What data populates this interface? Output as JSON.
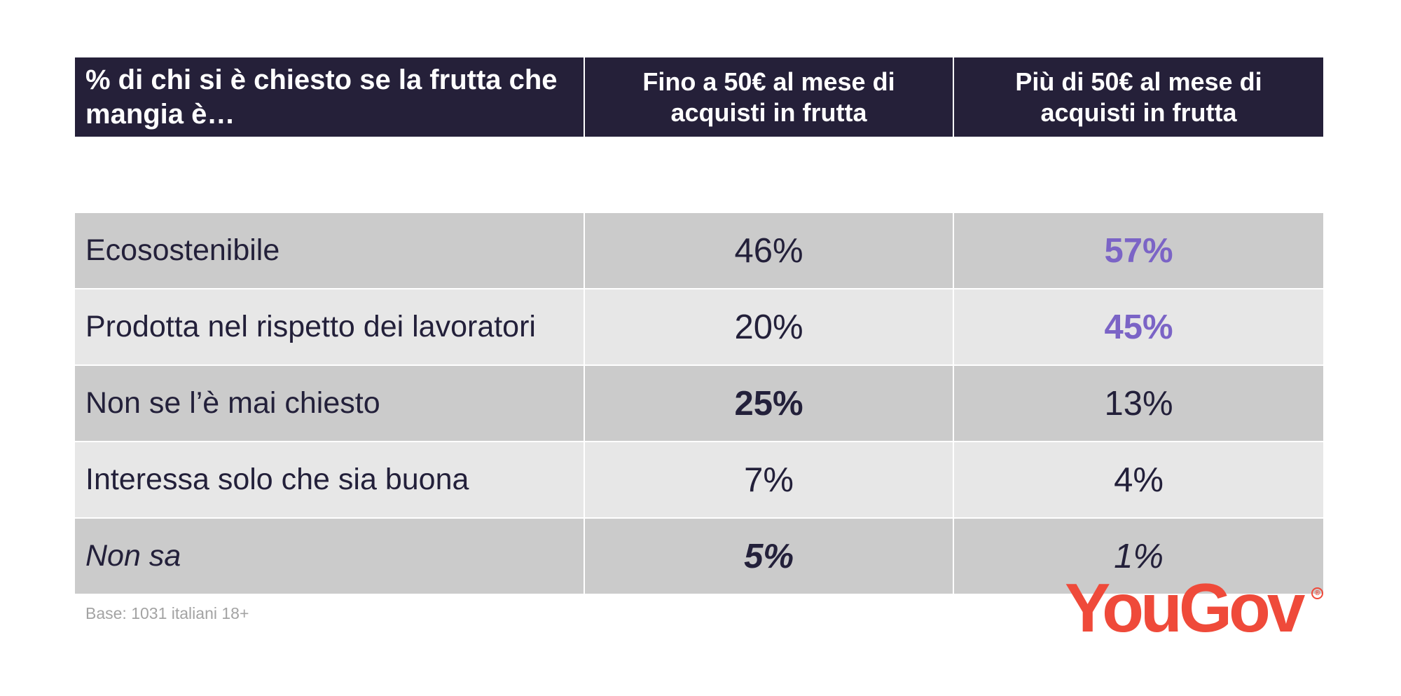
{
  "chart_data": {
    "type": "table",
    "header": {
      "question": "% di chi si è chiesto se la frutta che mangia è…",
      "col1": "Fino a 50€ al mese di acquisti in frutta",
      "col2": "Più di 50€ al mese di acquisti in frutta"
    },
    "rows": [
      {
        "label": "Ecosostenibile",
        "col1": "46%",
        "col2": "57%"
      },
      {
        "label": "Prodotta nel rispetto dei lavoratori",
        "col1": "20%",
        "col2": "45%"
      },
      {
        "label": "Non se l’è mai chiesto",
        "col1": "25%",
        "col2": "13%"
      },
      {
        "label": "Interessa solo che sia buona",
        "col1": "7%",
        "col2": "4%"
      },
      {
        "label": "Non sa",
        "col1": "5%",
        "col2": "1%"
      }
    ],
    "colors": {
      "header_bg": "#252039",
      "row_dark": "#cbcbcb",
      "row_light": "#e7e7e7",
      "highlight": "#7b64c6",
      "text": "#23203a"
    }
  },
  "footer": {
    "base": "Base: 1031 italiani 18+",
    "logo": "YouGov",
    "logo_mark": "®",
    "logo_color": "#ef4a3a"
  }
}
